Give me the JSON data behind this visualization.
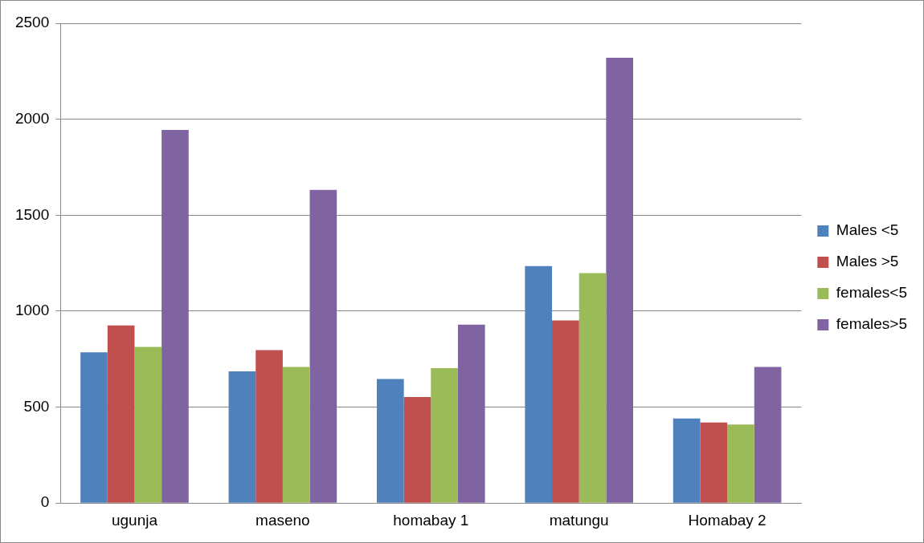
{
  "chart_data": {
    "type": "bar",
    "categories": [
      "ugunja",
      "maseno",
      "homabay 1",
      "matungu",
      "Homabay 2"
    ],
    "series": [
      {
        "name": "Males <5",
        "color": "#4f81bd",
        "values": [
          786,
          686,
          647,
          1235,
          441
        ]
      },
      {
        "name": "Males >5",
        "color": "#c0504d",
        "values": [
          926,
          797,
          553,
          952,
          420
        ]
      },
      {
        "name": "females<5",
        "color": "#9bbb59",
        "values": [
          814,
          709,
          703,
          1198,
          409
        ]
      },
      {
        "name": "females>5",
        "color": "#8064a2",
        "values": [
          1944,
          1632,
          930,
          2320,
          709
        ]
      }
    ],
    "ylim": [
      0,
      2500
    ],
    "yticks": [
      0,
      500,
      1000,
      1500,
      2000,
      2500
    ],
    "grid": "y",
    "legend": "right"
  }
}
